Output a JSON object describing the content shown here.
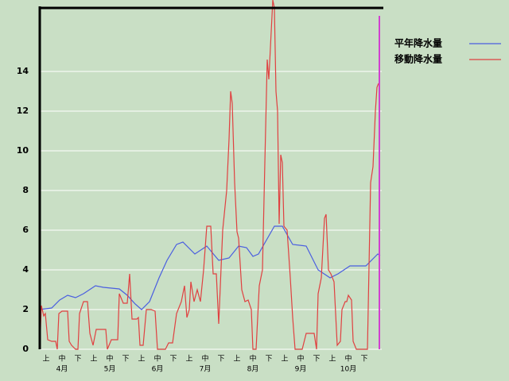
{
  "chart_data": {
    "type": "line",
    "ylim": [
      0,
      17.2
    ],
    "yticks": [
      0,
      2,
      4,
      6,
      8,
      10,
      12,
      14
    ],
    "grid": true,
    "xlim": [
      0,
      215
    ],
    "xticks": [
      {
        "value": 4,
        "label": "上"
      },
      {
        "value": 14,
        "label": "中"
      },
      {
        "value": 24,
        "label": "下"
      },
      {
        "value": 34,
        "label": "上"
      },
      {
        "value": 44,
        "label": "中"
      },
      {
        "value": 54,
        "label": "下"
      },
      {
        "value": 64,
        "label": "上"
      },
      {
        "value": 74,
        "label": "中"
      },
      {
        "value": 84,
        "label": "下"
      },
      {
        "value": 94,
        "label": "上"
      },
      {
        "value": 104,
        "label": "中"
      },
      {
        "value": 114,
        "label": "下"
      },
      {
        "value": 124,
        "label": "上"
      },
      {
        "value": 134,
        "label": "中"
      },
      {
        "value": 144,
        "label": "下"
      },
      {
        "value": 154,
        "label": "上"
      },
      {
        "value": 164,
        "label": "中"
      },
      {
        "value": 174,
        "label": "下"
      },
      {
        "value": 184,
        "label": "上"
      },
      {
        "value": 194,
        "label": "中"
      },
      {
        "value": 204,
        "label": "下"
      }
    ],
    "month_ticks": [
      {
        "value": 14,
        "label": "4月"
      },
      {
        "value": 44,
        "label": "5月"
      },
      {
        "value": 74,
        "label": "6月"
      },
      {
        "value": 104,
        "label": "7月"
      },
      {
        "value": 134,
        "label": "8月"
      },
      {
        "value": 164,
        "label": "9月"
      },
      {
        "value": 194,
        "label": "10月"
      }
    ],
    "series": [
      {
        "name": "平年降水量",
        "color": "#4a5ee0",
        "x": [
          0,
          7.5,
          12.5,
          17.5,
          22.5,
          27.5,
          35,
          40,
          50,
          55,
          60,
          64,
          69,
          75,
          80,
          86,
          90,
          97.5,
          105,
          112.5,
          119,
          125,
          130,
          134,
          137.5,
          147.5,
          152.5,
          159,
          167.5,
          175,
          182.5,
          187.5,
          195,
          205,
          212.5,
          214
        ],
        "values": [
          2.0,
          2.08,
          2.48,
          2.72,
          2.6,
          2.8,
          3.2,
          3.12,
          3.04,
          2.72,
          2.28,
          2.0,
          2.4,
          3.6,
          4.48,
          5.28,
          5.4,
          4.8,
          5.2,
          4.48,
          4.6,
          5.2,
          5.12,
          4.68,
          4.8,
          6.2,
          6.2,
          5.28,
          5.2,
          4.0,
          3.6,
          3.8,
          4.2,
          4.2,
          4.8,
          4.72
        ]
      },
      {
        "name": "移動降水量",
        "color": "#e04040",
        "x": [
          0,
          1,
          2.5,
          3.5,
          5,
          7.5,
          10,
          11,
          12,
          14,
          17.5,
          18.5,
          20,
          22.5,
          24,
          25,
          27.5,
          30,
          31.5,
          33.5,
          35.5,
          40,
          41.5,
          42.5,
          45,
          49,
          50,
          52.5,
          55,
          56.5,
          58,
          61,
          62,
          63,
          65,
          67,
          70,
          72.5,
          74,
          79,
          81,
          83.5,
          86,
          89,
          91,
          92.5,
          94,
          95,
          97,
          99,
          101,
          103,
          105,
          107.5,
          109,
          111,
          112.5,
          115,
          117.5,
          119,
          120,
          121,
          122.5,
          124,
          125,
          127,
          129,
          131,
          133,
          134,
          136,
          138,
          140,
          141.5,
          143,
          144,
          145.5,
          146.5,
          147.5,
          148.5,
          149.5,
          150.5,
          151.5,
          152.5,
          153.5,
          155.5,
          157.5,
          159,
          160.5,
          165,
          167.5,
          171,
          172.5,
          174,
          175,
          177,
          179,
          180,
          181.5,
          183,
          185,
          187,
          189,
          190,
          192,
          193,
          194,
          196,
          197,
          199,
          205,
          206,
          208,
          209.5,
          211,
          212,
          213
        ],
        "values": [
          0,
          2.2,
          1.68,
          1.8,
          0.48,
          0.4,
          0.4,
          0,
          1.8,
          1.92,
          1.92,
          0.4,
          0.2,
          0,
          0,
          1.8,
          2.4,
          2.4,
          0.8,
          0.2,
          1.0,
          1.0,
          1.0,
          0,
          0.48,
          0.48,
          2.8,
          2.32,
          2.32,
          3.8,
          1.52,
          1.52,
          1.6,
          0.2,
          0.2,
          2.0,
          2.0,
          1.92,
          0,
          0,
          0.32,
          0.32,
          1.8,
          2.4,
          3.2,
          1.6,
          2.0,
          3.4,
          2.4,
          3.0,
          2.4,
          4.0,
          6.2,
          6.2,
          3.8,
          3.8,
          1.28,
          6.0,
          8.0,
          10.6,
          13.0,
          12.4,
          8.4,
          5.92,
          5.6,
          3.0,
          2.4,
          2.48,
          2.0,
          0,
          0,
          3.2,
          4.0,
          9.4,
          14.6,
          13.6,
          16.0,
          17.6,
          17.2,
          13.0,
          12.0,
          6.32,
          9.8,
          9.4,
          6.2,
          6.0,
          3.6,
          1.6,
          0,
          0,
          0.8,
          0.8,
          0.8,
          0,
          2.8,
          3.6,
          6.6,
          6.8,
          4.0,
          3.8,
          3.4,
          0.2,
          0.4,
          2.0,
          2.4,
          2.4,
          2.72,
          2.48,
          0.4,
          0,
          0,
          0,
          8.4,
          9.2,
          12.0,
          13.2,
          13.4
        ]
      }
    ]
  }
}
